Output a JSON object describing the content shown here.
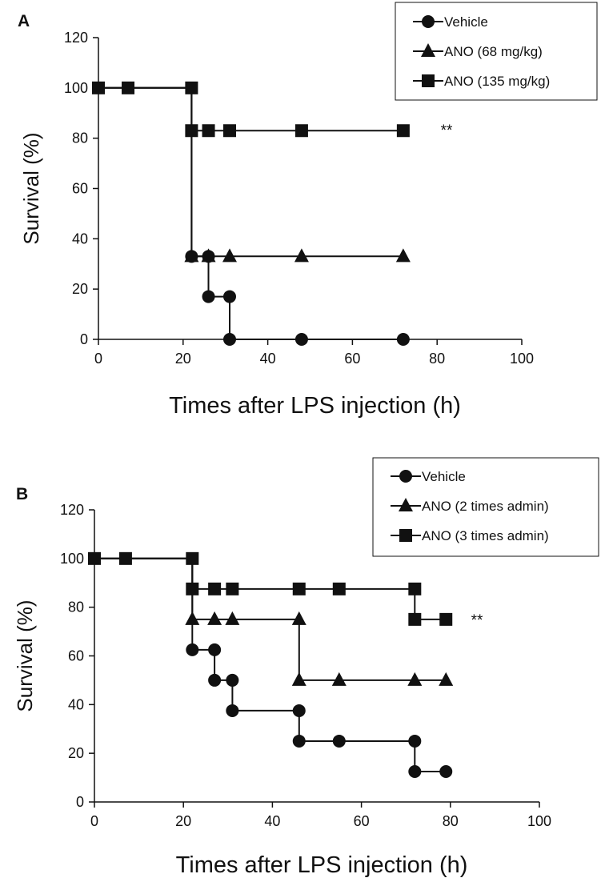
{
  "chart_data": [
    {
      "panel_label": "A",
      "type": "line",
      "step": true,
      "xlabel": "Times after LPS injection (h)",
      "ylabel": "Survival (%)",
      "xlim": [
        0,
        100
      ],
      "ylim": [
        0,
        120
      ],
      "xticks": [
        0,
        20,
        40,
        60,
        80,
        100
      ],
      "yticks": [
        0,
        20,
        40,
        60,
        80,
        100,
        120
      ],
      "legend_position": "top-right",
      "grid": false,
      "annotation": "**",
      "series": [
        {
          "name": "Vehicle",
          "marker": "circle",
          "path": [
            [
              0,
              100
            ],
            [
              22,
              100
            ],
            [
              22,
              33
            ],
            [
              26,
              33
            ],
            [
              26,
              17
            ],
            [
              31,
              17
            ],
            [
              31,
              0
            ],
            [
              72,
              0
            ]
          ],
          "points": [
            [
              22,
              33
            ],
            [
              26,
              33
            ],
            [
              26,
              17
            ],
            [
              31,
              17
            ],
            [
              31,
              0
            ],
            [
              48,
              0
            ],
            [
              72,
              0
            ]
          ]
        },
        {
          "name": "ANO (68 mg/kg)",
          "marker": "triangle",
          "path": [
            [
              0,
              100
            ],
            [
              22,
              100
            ],
            [
              22,
              33
            ],
            [
              72,
              33
            ]
          ],
          "points": [
            [
              22,
              33
            ],
            [
              26,
              33
            ],
            [
              31,
              33
            ],
            [
              48,
              33
            ],
            [
              72,
              33
            ]
          ]
        },
        {
          "name": "ANO (135 mg/kg)",
          "marker": "square",
          "path": [
            [
              0,
              100
            ],
            [
              22,
              100
            ],
            [
              22,
              83
            ],
            [
              72,
              83
            ]
          ],
          "points": [
            [
              0,
              100
            ],
            [
              7,
              100
            ],
            [
              22,
              100
            ],
            [
              22,
              83
            ],
            [
              26,
              83
            ],
            [
              31,
              83
            ],
            [
              48,
              83
            ],
            [
              72,
              83
            ]
          ]
        }
      ]
    },
    {
      "panel_label": "B",
      "type": "line",
      "step": true,
      "xlabel": "Times after LPS injection (h)",
      "ylabel": "Survival (%)",
      "xlim": [
        0,
        100
      ],
      "ylim": [
        0,
        120
      ],
      "xticks": [
        0,
        20,
        40,
        60,
        80,
        100
      ],
      "yticks": [
        0,
        20,
        40,
        60,
        80,
        100,
        120
      ],
      "legend_position": "top-right",
      "grid": false,
      "annotation": "**",
      "series": [
        {
          "name": "Vehicle",
          "marker": "circle",
          "path": [
            [
              0,
              100
            ],
            [
              22,
              100
            ],
            [
              22,
              62.5
            ],
            [
              27,
              62.5
            ],
            [
              27,
              50
            ],
            [
              31,
              50
            ],
            [
              31,
              37.5
            ],
            [
              46,
              37.5
            ],
            [
              46,
              25
            ],
            [
              72,
              25
            ],
            [
              72,
              12.5
            ],
            [
              79,
              12.5
            ]
          ],
          "points": [
            [
              22,
              62.5
            ],
            [
              27,
              62.5
            ],
            [
              27,
              50
            ],
            [
              31,
              50
            ],
            [
              31,
              37.5
            ],
            [
              46,
              37.5
            ],
            [
              46,
              25
            ],
            [
              55,
              25
            ],
            [
              72,
              25
            ],
            [
              72,
              12.5
            ],
            [
              79,
              12.5
            ]
          ]
        },
        {
          "name": "ANO (2 times admin)",
          "marker": "triangle",
          "path": [
            [
              0,
              100
            ],
            [
              22,
              100
            ],
            [
              22,
              75
            ],
            [
              46,
              75
            ],
            [
              46,
              50
            ],
            [
              79,
              50
            ]
          ],
          "points": [
            [
              22,
              75
            ],
            [
              27,
              75
            ],
            [
              31,
              75
            ],
            [
              46,
              75
            ],
            [
              46,
              50
            ],
            [
              55,
              50
            ],
            [
              72,
              50
            ],
            [
              79,
              50
            ]
          ]
        },
        {
          "name": "ANO (3 times admin)",
          "marker": "square",
          "path": [
            [
              0,
              100
            ],
            [
              22,
              100
            ],
            [
              22,
              87.5
            ],
            [
              72,
              87.5
            ],
            [
              72,
              75
            ],
            [
              79,
              75
            ]
          ],
          "points": [
            [
              0,
              100
            ],
            [
              7,
              100
            ],
            [
              22,
              100
            ],
            [
              22,
              87.5
            ],
            [
              27,
              87.5
            ],
            [
              31,
              87.5
            ],
            [
              46,
              87.5
            ],
            [
              55,
              87.5
            ],
            [
              72,
              87.5
            ],
            [
              72,
              75
            ],
            [
              79,
              75
            ]
          ]
        }
      ]
    }
  ]
}
